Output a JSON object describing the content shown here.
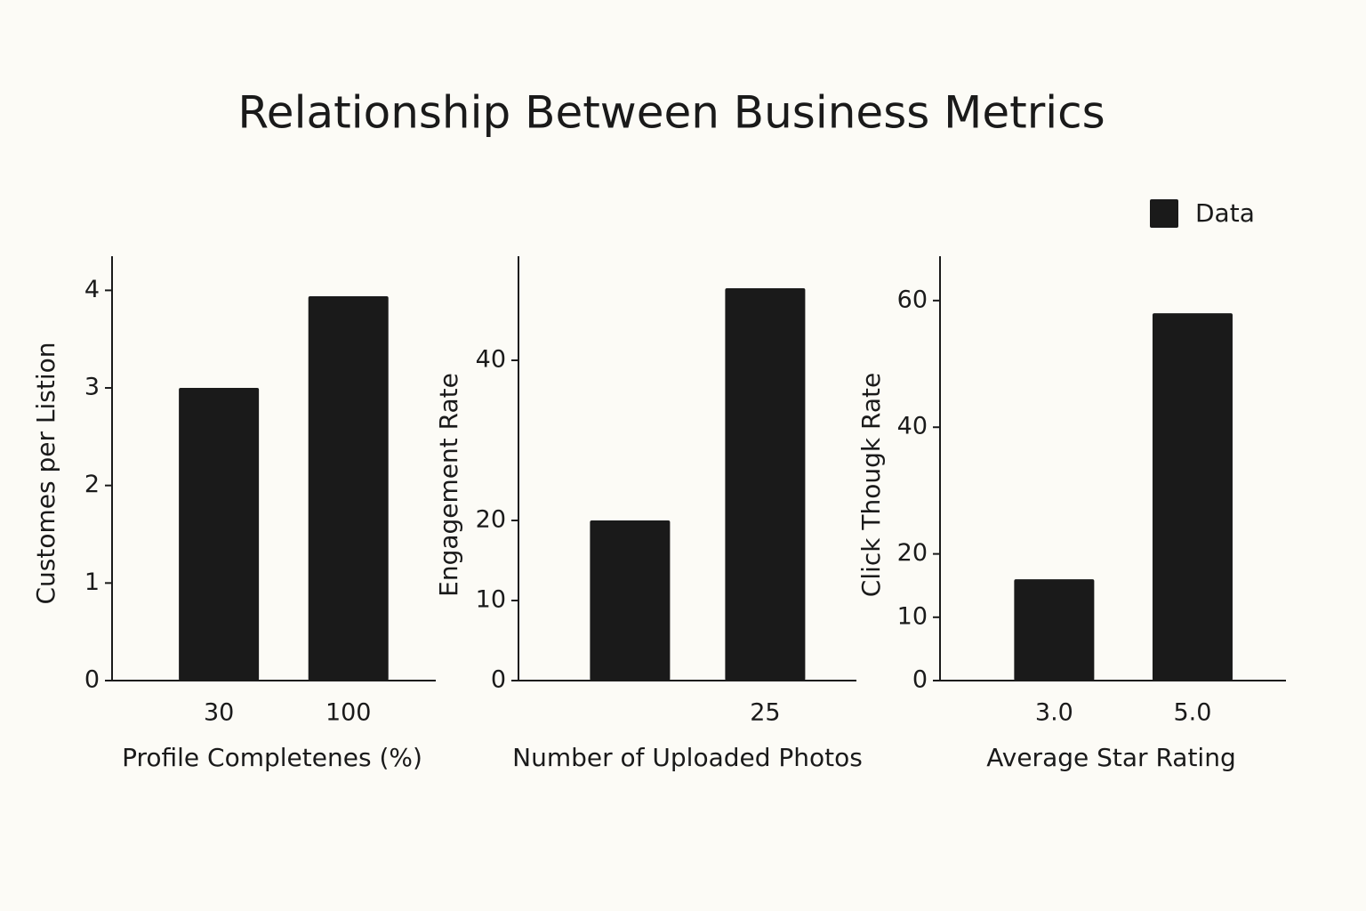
{
  "title": "Relationship Between Business Metrics",
  "legend": "Data",
  "legend_position": "upper right",
  "chart_data": [
    {
      "type": "bar",
      "xlabel": "Profile Completenes (%)",
      "ylabel": "Customes per Listion",
      "categories": [
        "30",
        "100"
      ],
      "values": [
        3.0,
        3.94
      ],
      "color": "#1a1a1a",
      "ylim": [
        0,
        4.35
      ],
      "yticks": [
        0,
        1,
        2,
        3,
        4
      ]
    },
    {
      "type": "bar",
      "xlabel": "Number of Uploaded Photos",
      "ylabel": "Engagement Rate",
      "categories": [
        null,
        "25"
      ],
      "values": [
        20,
        49
      ],
      "color": "#1a1a1a",
      "ylim": [
        0,
        53
      ],
      "yticks": [
        0,
        10,
        20,
        40
      ]
    },
    {
      "type": "bar",
      "xlabel": "Average Star Rating",
      "ylabel": "Click Thougk Rate",
      "categories": [
        "3.0",
        "5.0"
      ],
      "values": [
        16,
        58
      ],
      "color": "#1a1a1a",
      "ylim": [
        0,
        67
      ],
      "yticks": [
        0,
        10,
        20,
        40,
        60
      ]
    }
  ]
}
